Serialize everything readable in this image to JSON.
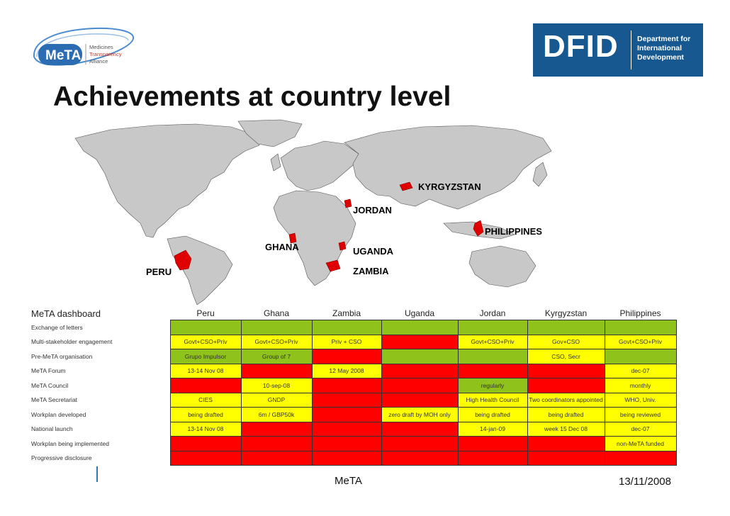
{
  "logos": {
    "meta_text": "MeTA",
    "meta_lines": [
      "Medicines",
      "Transparency",
      "Alliance"
    ],
    "dfid_text": "DFID",
    "dfid_lines": [
      "Department for",
      "International",
      "Development"
    ]
  },
  "title": "Achievements at country level",
  "map": {
    "labels": [
      "KYRGYZSTAN",
      "JORDAN",
      "PHILIPPINES",
      "GHANA",
      "UGANDA",
      "PERU",
      "ZAMBIA"
    ]
  },
  "dashboard": {
    "heading": "MeTA dashboard",
    "countries": [
      "Peru",
      "Ghana",
      "Zambia",
      "Uganda",
      "Jordan",
      "Kyrgyzstan",
      "Philippines"
    ],
    "rows": [
      {
        "label": "Exchange of letters",
        "cells": [
          {
            "c": "g",
            "t": ""
          },
          {
            "c": "g",
            "t": ""
          },
          {
            "c": "g",
            "t": ""
          },
          {
            "c": "g",
            "t": ""
          },
          {
            "c": "g",
            "t": ""
          },
          {
            "c": "g",
            "t": ""
          },
          {
            "c": "g",
            "t": ""
          }
        ]
      },
      {
        "label": "Multi-stakeholder engagement",
        "cells": [
          {
            "c": "y",
            "t": "Govt+CSO+Priv"
          },
          {
            "c": "y",
            "t": "Govt+CSO+Priv"
          },
          {
            "c": "y",
            "t": "Priv + CSO"
          },
          {
            "c": "r",
            "t": ""
          },
          {
            "c": "y",
            "t": "Govt+CSO+Priv"
          },
          {
            "c": "y",
            "t": "Gov+CSO"
          },
          {
            "c": "y",
            "t": "Govt+CSO+Priv"
          }
        ]
      },
      {
        "label": "Pre-MeTA organisation",
        "cells": [
          {
            "c": "g",
            "t": "Grupo Impulsor"
          },
          {
            "c": "g",
            "t": "Group of 7"
          },
          {
            "c": "r",
            "t": ""
          },
          {
            "c": "g",
            "t": ""
          },
          {
            "c": "g",
            "t": ""
          },
          {
            "c": "y",
            "t": "CSO, Secr"
          },
          {
            "c": "g",
            "t": ""
          }
        ]
      },
      {
        "label": "MeTA Forum",
        "cells": [
          {
            "c": "y",
            "t": "13-14 Nov 08"
          },
          {
            "c": "r",
            "t": ""
          },
          {
            "c": "y",
            "t": "12 May 2008"
          },
          {
            "c": "r",
            "t": ""
          },
          {
            "c": "r",
            "t": ""
          },
          {
            "c": "r",
            "t": ""
          },
          {
            "c": "y",
            "t": "dec-07"
          }
        ]
      },
      {
        "label": "MeTA Council",
        "cells": [
          {
            "c": "r",
            "t": ""
          },
          {
            "c": "y",
            "t": "10-sep-08"
          },
          {
            "c": "r",
            "t": ""
          },
          {
            "c": "r",
            "t": ""
          },
          {
            "c": "g",
            "t": "regularly"
          },
          {
            "c": "r",
            "t": ""
          },
          {
            "c": "y",
            "t": "monthly"
          }
        ]
      },
      {
        "label": "MeTA Secretariat",
        "cells": [
          {
            "c": "y",
            "t": "CIES"
          },
          {
            "c": "y",
            "t": "GNDP"
          },
          {
            "c": "r",
            "t": ""
          },
          {
            "c": "r",
            "t": ""
          },
          {
            "c": "y",
            "t": "High Health Council"
          },
          {
            "c": "y",
            "t": "Two coordinators appointed"
          },
          {
            "c": "y",
            "t": "WHO, Univ."
          }
        ]
      },
      {
        "label": "Workplan developed",
        "cells": [
          {
            "c": "y",
            "t": "being drafted"
          },
          {
            "c": "y",
            "t": "6m / GBP50k"
          },
          {
            "c": "r",
            "t": ""
          },
          {
            "c": "y",
            "t": "zero draft by MOH only"
          },
          {
            "c": "y",
            "t": "being drafted"
          },
          {
            "c": "y",
            "t": "being drafted"
          },
          {
            "c": "y",
            "t": "being reviewed"
          }
        ]
      },
      {
        "label": "National launch",
        "cells": [
          {
            "c": "y",
            "t": "13-14 Nov 08"
          },
          {
            "c": "r",
            "t": ""
          },
          {
            "c": "r",
            "t": ""
          },
          {
            "c": "r",
            "t": ""
          },
          {
            "c": "y",
            "t": "14-jan-09"
          },
          {
            "c": "y",
            "t": "week 15 Dec 08"
          },
          {
            "c": "y",
            "t": "dec-07"
          }
        ]
      },
      {
        "label": "Workplan being implemented",
        "cells": [
          {
            "c": "r",
            "t": ""
          },
          {
            "c": "r",
            "t": ""
          },
          {
            "c": "r",
            "t": ""
          },
          {
            "c": "r",
            "t": ""
          },
          {
            "c": "r",
            "t": ""
          },
          {
            "c": "r",
            "t": ""
          },
          {
            "c": "y",
            "t": "non-MeTA funded"
          }
        ]
      },
      {
        "label": "Progressive disclosure",
        "cells": [
          {
            "c": "r",
            "t": ""
          },
          {
            "c": "r",
            "t": ""
          },
          {
            "c": "r",
            "t": ""
          },
          {
            "c": "r",
            "t": ""
          },
          {
            "c": "r",
            "t": ""
          },
          {
            "c": "r",
            "t": ""
          },
          {
            "c": "r",
            "t": ""
          }
        ]
      }
    ]
  },
  "footer": {
    "center": "MeTA",
    "date": "13/11/2008"
  },
  "colors": {
    "green": "#8fc21a",
    "yellow": "#ffff00",
    "red": "#ff0000",
    "dfid_blue": "#16588f",
    "meta_blue": "#2b6cb3"
  }
}
